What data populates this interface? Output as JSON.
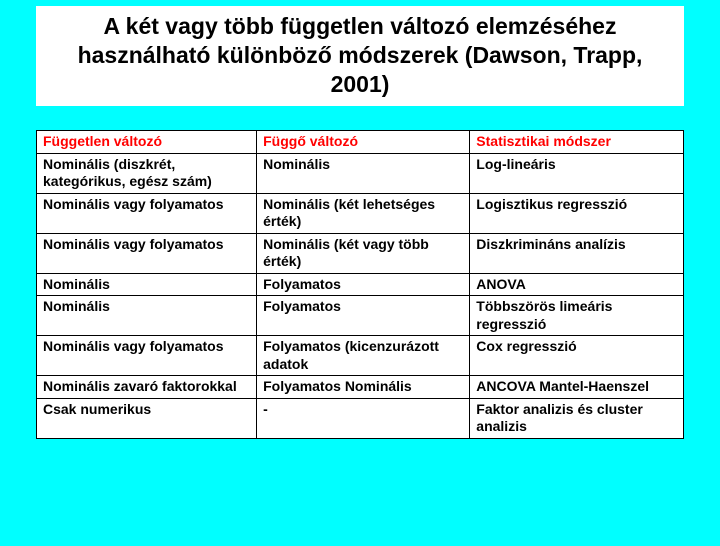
{
  "slide": {
    "title": "A két vagy több független változó elemzéséhez használható különböző módszerek (Dawson, Trapp, 2001)",
    "background_color": "#00ffff",
    "title_bg": "#ffffff",
    "title_color": "#000000",
    "title_fontsize": 23
  },
  "table": {
    "type": "table",
    "background_color": "#ffffff",
    "border_color": "#000000",
    "header_color": "#ff0000",
    "body_color": "#000000",
    "font_weight": "bold",
    "fontsize": 14,
    "column_widths": [
      "34%",
      "33%",
      "33%"
    ],
    "columns": [
      "Független változó",
      "Függő változó",
      "Statisztikai módszer"
    ],
    "rows": [
      [
        "Nominális (diszkrét, kategórikus, egész szám)",
        "Nominális",
        "Log-lineáris"
      ],
      [
        "Nominális vagy folyamatos",
        "Nominális (két lehetséges érték)",
        "Logisztikus regresszió"
      ],
      [
        "Nominális vagy folyamatos",
        "Nominális (két vagy több érték)",
        "Diszkrimináns analízis"
      ],
      [
        "Nominális",
        "Folyamatos",
        "ANOVA"
      ],
      [
        "Nominális",
        "Folyamatos",
        "Többszörös limeáris regresszió"
      ],
      [
        "Nominális vagy folyamatos",
        "Folyamatos (kicenzurázott adatok",
        "Cox regresszió"
      ],
      [
        "Nominális zavaró faktorokkal",
        "Folyamatos Nominális",
        "ANCOVA Mantel-Haenszel"
      ],
      [
        "Csak numerikus",
        "-",
        "Faktor analizis és cluster analizis"
      ]
    ]
  }
}
